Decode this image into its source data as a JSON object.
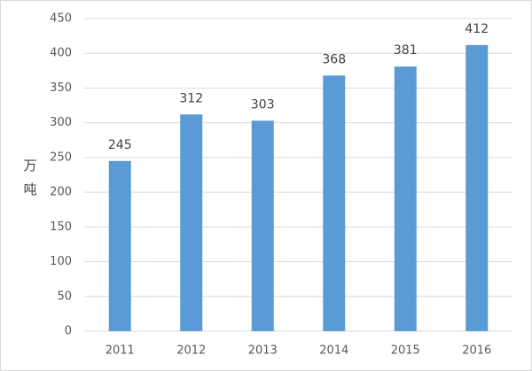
{
  "chart_data": {
    "type": "bar",
    "y_label": "万吨",
    "categories": [
      "2011",
      "2012",
      "2013",
      "2014",
      "2015",
      "2016"
    ],
    "values": [
      245,
      312,
      303,
      368,
      381,
      412
    ],
    "color": "#5b9bd5",
    "ylim": [
      0,
      450
    ],
    "yticks": [
      0,
      50,
      100,
      150,
      200,
      250,
      300,
      350,
      400,
      450
    ],
    "grid": true
  }
}
